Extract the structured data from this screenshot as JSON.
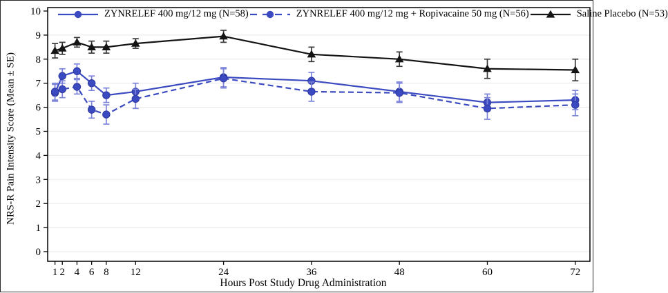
{
  "chart_data": {
    "type": "line",
    "xlabel": "Hours Post Study Drug Administration",
    "ylabel": "NRS-R Pain Intensity Score (Mean ± SE)",
    "x": [
      1,
      2,
      4,
      6,
      8,
      12,
      24,
      36,
      48,
      60,
      72
    ],
    "xlim": [
      0,
      74
    ],
    "ylim": [
      0,
      10
    ],
    "y_ticks": [
      0,
      1,
      2,
      3,
      4,
      5,
      6,
      7,
      8,
      9,
      10
    ],
    "grid": "horizontal-light",
    "legend_position": "top",
    "error_bars": "mean ± SE whiskers with caps on every point",
    "colors": {
      "zynrelef_blue": "#3b4ac0",
      "placebo_black": "#141414",
      "error_bar_blue": "#7c83da",
      "error_bar_black": "#3a3a3a",
      "gridline": "#ececec",
      "frame": "#000000"
    },
    "series": [
      {
        "name": "ZYNRELEF 400 mg/12 mg (N=58)",
        "color": "#3b4ac0",
        "line": "solid",
        "marker": "circle",
        "values": [
          6.6,
          7.3,
          7.5,
          7.0,
          6.5,
          6.65,
          7.25,
          7.1,
          6.65,
          6.2,
          6.3
        ],
        "se": [
          0.35,
          0.3,
          0.3,
          0.3,
          0.3,
          0.35,
          0.4,
          0.35,
          0.4,
          0.35,
          0.4
        ]
      },
      {
        "name": "ZYNRELEF 400 mg/12 mg + Ropivacaine 50 mg (N=56)",
        "color": "#3b4ac0",
        "line": "dashed",
        "marker": "circle",
        "values": [
          6.65,
          6.75,
          6.85,
          5.9,
          5.7,
          6.35,
          7.2,
          6.65,
          6.6,
          5.95,
          6.1
        ],
        "se": [
          0.35,
          0.35,
          0.3,
          0.35,
          0.4,
          0.4,
          0.4,
          0.4,
          0.4,
          0.45,
          0.45
        ]
      },
      {
        "name": "Saline Placebo (N=53)",
        "color": "#141414",
        "line": "solid",
        "marker": "triangle",
        "values": [
          8.35,
          8.45,
          8.7,
          8.5,
          8.5,
          8.65,
          8.95,
          8.2,
          8.0,
          7.6,
          7.55
        ],
        "se": [
          0.3,
          0.25,
          0.2,
          0.25,
          0.25,
          0.2,
          0.25,
          0.3,
          0.3,
          0.4,
          0.45
        ]
      }
    ]
  }
}
